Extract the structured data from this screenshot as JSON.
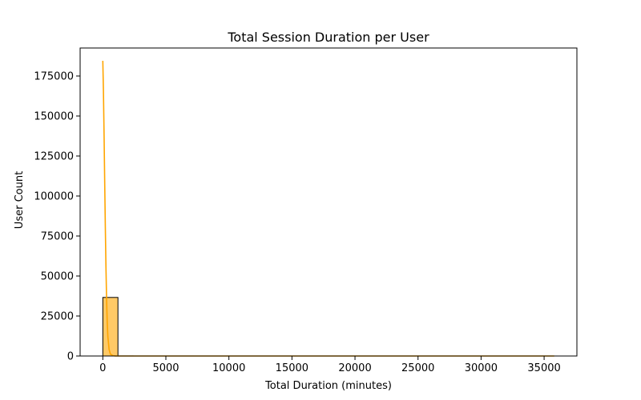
{
  "chart_data": {
    "type": "bar",
    "title": "Total Session Duration per User",
    "xlabel": "Total Duration (minutes)",
    "ylabel": "User Count",
    "xlim": [
      -1800,
      37600
    ],
    "ylim": [
      0,
      192500
    ],
    "xticks": [
      0,
      5000,
      10000,
      15000,
      20000,
      25000,
      30000,
      35000
    ],
    "yticks": [
      0,
      25000,
      50000,
      75000,
      100000,
      125000,
      150000,
      175000
    ],
    "bins": [
      {
        "start": 0,
        "end": 1200,
        "count": 36600
      },
      {
        "start": 1200,
        "end": 2400,
        "count": 30
      },
      {
        "start": 2400,
        "end": 3600,
        "count": 6
      },
      {
        "start": 3600,
        "end": 4800,
        "count": 2
      },
      {
        "start": 4800,
        "end": 6000,
        "count": 1
      },
      {
        "start": 6000,
        "end": 7200,
        "count": 1
      },
      {
        "start": 7200,
        "end": 8400,
        "count": 0
      },
      {
        "start": 8400,
        "end": 9600,
        "count": 0
      },
      {
        "start": 9600,
        "end": 10800,
        "count": 0
      },
      {
        "start": 10800,
        "end": 12000,
        "count": 0
      },
      {
        "start": 12000,
        "end": 13200,
        "count": 0
      },
      {
        "start": 13200,
        "end": 14400,
        "count": 0
      },
      {
        "start": 14400,
        "end": 15600,
        "count": 0
      },
      {
        "start": 15600,
        "end": 16800,
        "count": 0
      },
      {
        "start": 16800,
        "end": 18000,
        "count": 0
      },
      {
        "start": 18000,
        "end": 19200,
        "count": 0
      },
      {
        "start": 19200,
        "end": 20400,
        "count": 0
      },
      {
        "start": 20400,
        "end": 21600,
        "count": 0
      },
      {
        "start": 21600,
        "end": 22800,
        "count": 0
      },
      {
        "start": 22800,
        "end": 24000,
        "count": 0
      },
      {
        "start": 24000,
        "end": 25200,
        "count": 0
      },
      {
        "start": 25200,
        "end": 26400,
        "count": 0
      },
      {
        "start": 26400,
        "end": 27600,
        "count": 0
      },
      {
        "start": 27600,
        "end": 28800,
        "count": 0
      },
      {
        "start": 28800,
        "end": 30000,
        "count": 0
      },
      {
        "start": 30000,
        "end": 31200,
        "count": 0
      },
      {
        "start": 31200,
        "end": 32400,
        "count": 0
      },
      {
        "start": 32400,
        "end": 33600,
        "count": 0
      },
      {
        "start": 33600,
        "end": 34800,
        "count": 0
      },
      {
        "start": 34800,
        "end": 36000,
        "count": 1
      }
    ],
    "kde": {
      "x": [
        0,
        50,
        100,
        150,
        200,
        250,
        300,
        350,
        400,
        500,
        600,
        800,
        1000,
        1500,
        2000,
        5000,
        10000,
        20000,
        30000,
        35800
      ],
      "y": [
        184500,
        165000,
        138000,
        108000,
        80000,
        55000,
        35000,
        21000,
        12000,
        4000,
        1200,
        200,
        40,
        5,
        0,
        0,
        0,
        0,
        0,
        0
      ]
    },
    "bar_color": "#ffc966",
    "bar_edge_color": "#000000",
    "line_color": "#ffa500",
    "grid": false,
    "legend": "none"
  }
}
